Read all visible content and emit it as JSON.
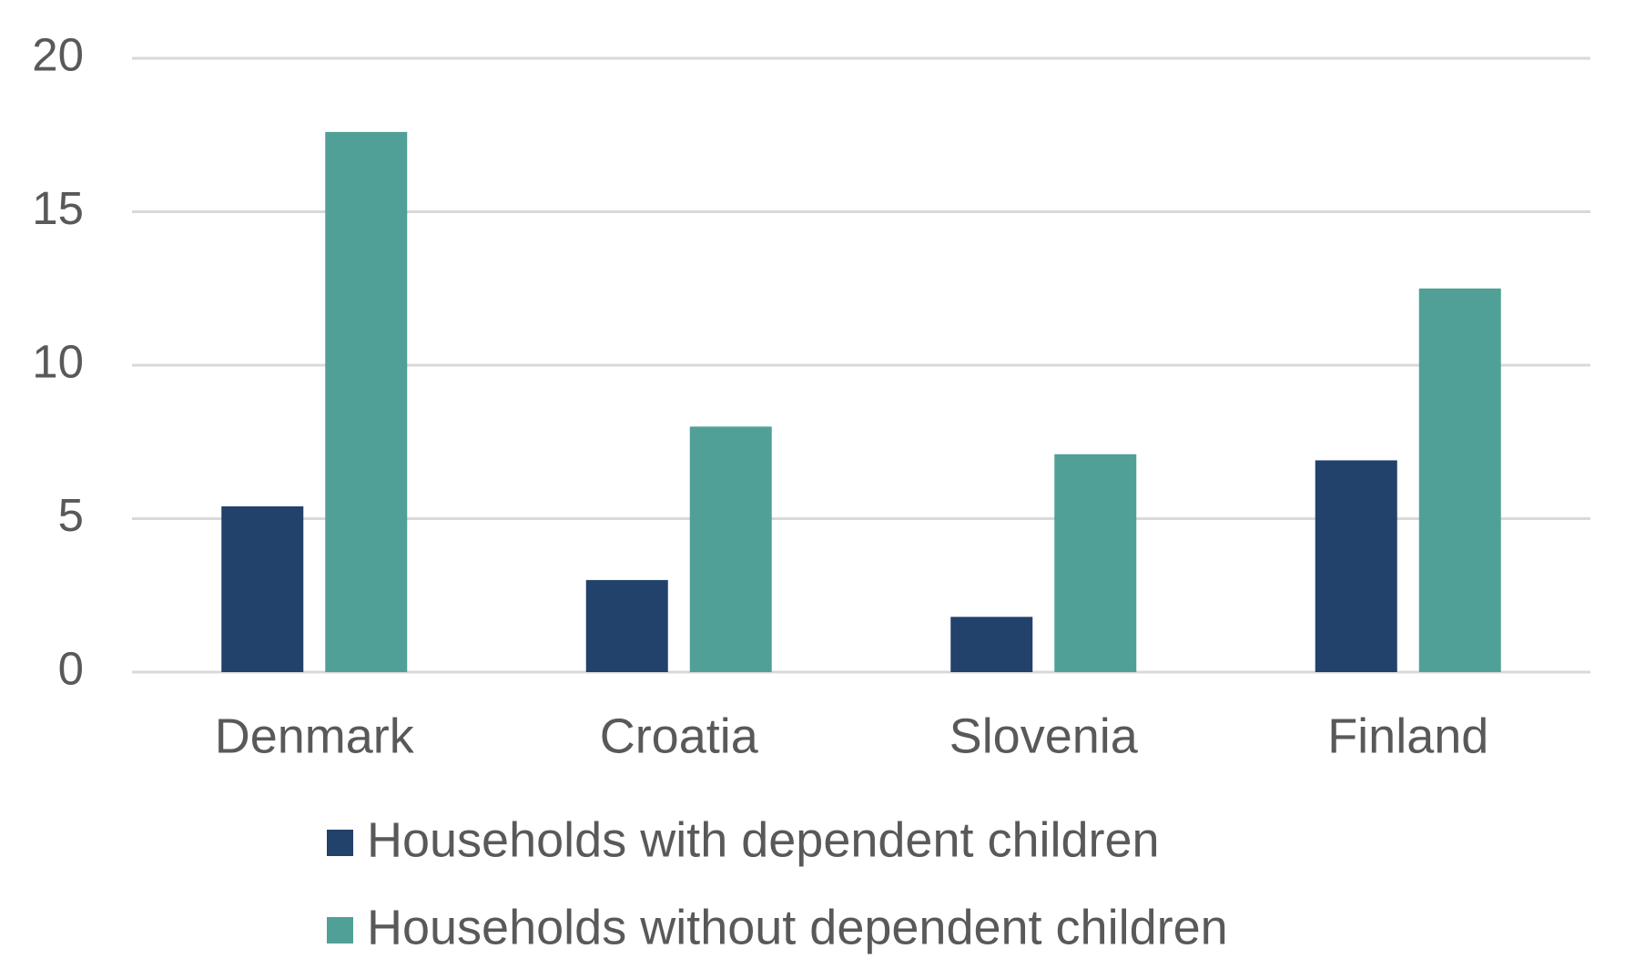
{
  "chart_data": {
    "type": "bar",
    "categories": [
      "Denmark",
      "Croatia",
      "Slovenia",
      "Finland"
    ],
    "series": [
      {
        "name": "Households with dependent children",
        "color": "#22416b",
        "values": [
          5.4,
          3.0,
          1.8,
          6.9
        ]
      },
      {
        "name": "Households without dependent children",
        "color": "#50a097",
        "values": [
          17.6,
          8.0,
          7.1,
          12.5
        ]
      }
    ],
    "ylim": [
      0,
      20
    ],
    "yticks": [
      0,
      5,
      10,
      15,
      20
    ],
    "grid": true,
    "legend": "bottom"
  }
}
